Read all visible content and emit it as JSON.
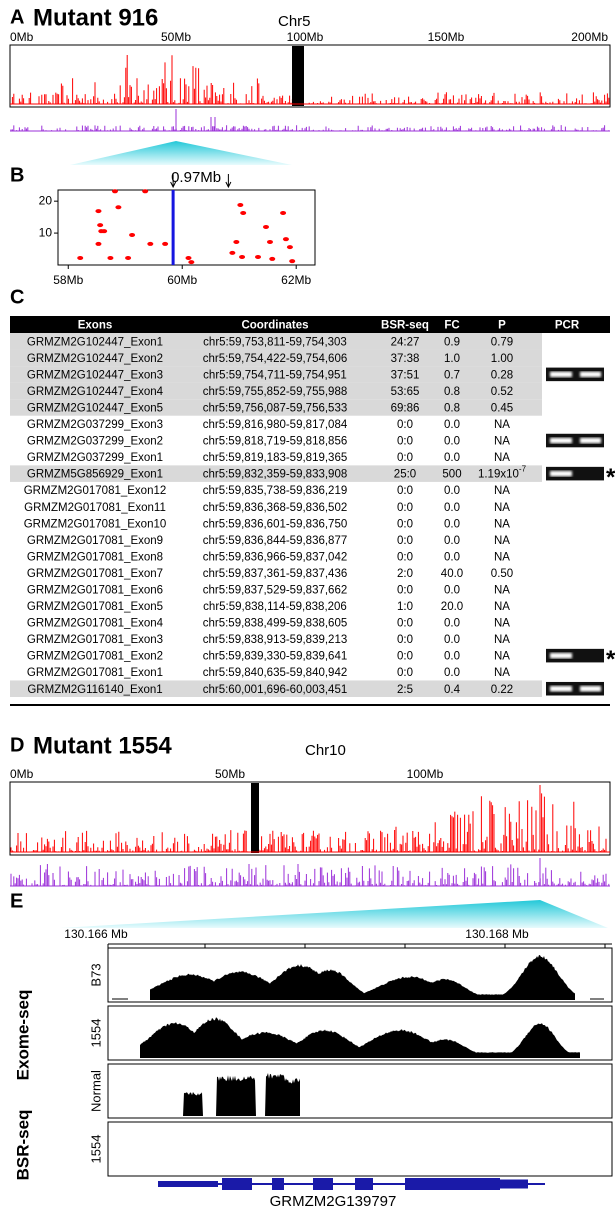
{
  "panel_a": {
    "letter": "A",
    "title": "Mutant 916",
    "chromosome": "Chr5",
    "axis_labels": [
      "0Mb",
      "50Mb",
      "100Mb",
      "150Mb",
      "200Mb"
    ]
  },
  "chart_data": {
    "type": "scatter",
    "letter": "B",
    "annotation": "0.97Mb",
    "x": [
      58.21,
      58.53,
      58.56,
      58.58,
      58.53,
      58.63,
      58.74,
      58.82,
      58.88,
      59.05,
      59.12,
      59.35,
      59.44,
      59.7,
      60.11,
      60.16,
      60.88,
      60.95,
      61.02,
      61.07,
      61.05,
      61.33,
      61.47,
      61.54,
      61.58,
      61.77,
      61.82,
      61.89,
      61.93
    ],
    "values": [
      2.2,
      16.9,
      12.5,
      10.6,
      6.6,
      10.6,
      2.2,
      23.1,
      18.1,
      2.2,
      9.4,
      23.1,
      6.6,
      6.6,
      2.2,
      0.9,
      3.8,
      7.2,
      18.8,
      16.3,
      2.5,
      2.5,
      11.9,
      7.2,
      1.9,
      16.3,
      8.1,
      5.6,
      1.2
    ],
    "color": "#ff0000",
    "highlight_x": 59.84,
    "highlight_color": "#1515e0",
    "interval": [
      59.84,
      60.81
    ],
    "xlim": [
      57.82,
      62.33
    ],
    "ylim": [
      0,
      23.5
    ],
    "xticks": [
      {
        "value": 58,
        "label": "58Mb"
      },
      {
        "value": 60,
        "label": "60Mb"
      },
      {
        "value": 62,
        "label": "62Mb"
      }
    ],
    "yticks": [
      10,
      20
    ]
  },
  "panel_c": {
    "letter": "C",
    "header": [
      "Exons",
      "Coordinates",
      "BSR-seq",
      "FC",
      "P",
      "PCR"
    ],
    "rows": [
      [
        "GRMZM2G102447_Exon1",
        "chr5:59,753,811-59,754,303",
        "24:27",
        "0.9",
        "0.79"
      ],
      [
        "GRMZM2G102447_Exon2",
        "chr5:59,754,422-59,754,606",
        "37:38",
        "1.0",
        "1.00"
      ],
      [
        "GRMZM2G102447_Exon3",
        "chr5:59,754,711-59,754,951",
        "37:51",
        "0.7",
        "0.28"
      ],
      [
        "GRMZM2G102447_Exon4",
        "chr5:59,755,852-59,755,988",
        "53:65",
        "0.8",
        "0.52"
      ],
      [
        "GRMZM2G102447_Exon5",
        "chr5:59,756,087-59,756,533",
        "69:86",
        "0.8",
        "0.45"
      ],
      [
        "GRMZM2G037299_Exon3",
        "chr5:59,816,980-59,817,084",
        "0:0",
        "0.0",
        "NA"
      ],
      [
        "GRMZM2G037299_Exon2",
        "chr5:59,818,719-59,818,856",
        "0:0",
        "0.0",
        "NA"
      ],
      [
        "GRMZM2G037299_Exon1",
        "chr5:59,819,183-59,819,365",
        "0:0",
        "0.0",
        "NA"
      ],
      [
        "GRMZM5G856929_Exon1",
        "chr5:59,832,359-59,833,908",
        "25:0",
        "500",
        {
          "base": "1.19x10",
          "exponent": "-7"
        }
      ],
      [
        "GRMZM2G017081_Exon12",
        "chr5:59,835,738-59,836,219",
        "0:0",
        "0.0",
        "NA"
      ],
      [
        "GRMZM2G017081_Exon11",
        "chr5:59,836,368-59,836,502",
        "0:0",
        "0.0",
        "NA"
      ],
      [
        "GRMZM2G017081_Exon10",
        "chr5:59,836,601-59,836,750",
        "0:0",
        "0.0",
        "NA"
      ],
      [
        "GRMZM2G017081_Exon9",
        "chr5:59,836,844-59,836,877",
        "0:0",
        "0.0",
        "NA"
      ],
      [
        "GRMZM2G017081_Exon8",
        "chr5:59,836,966-59,837,042",
        "0:0",
        "0.0",
        "NA"
      ],
      [
        "GRMZM2G017081_Exon7",
        "chr5:59,837,361-59,837,436",
        "2:0",
        "40.0",
        "0.50"
      ],
      [
        "GRMZM2G017081_Exon6",
        "chr5:59,837,529-59,837,662",
        "0:0",
        "0.0",
        "NA"
      ],
      [
        "GRMZM2G017081_Exon5",
        "chr5:59,838,114-59,838,206",
        "1:0",
        "20.0",
        "NA"
      ],
      [
        "GRMZM2G017081_Exon4",
        "chr5:59,838,499-59,838,605",
        "0:0",
        "0.0",
        "NA"
      ],
      [
        "GRMZM2G017081_Exon3",
        "chr5:59,838,913-59,839,213",
        "0:0",
        "0.0",
        "NA"
      ],
      [
        "GRMZM2G017081_Exon2",
        "chr5:59,839,330-59,839,641",
        "0:0",
        "0.0",
        "NA"
      ],
      [
        "GRMZM2G017081_Exon1",
        "chr5:59,840,635-59,840,942",
        "0:0",
        "0.0",
        "NA"
      ],
      [
        "GRMZM2G116140_Exon1",
        "chr5:60,001,696-60,003,451",
        "2:5",
        "0.4",
        "0.22"
      ]
    ],
    "shaded_rows": [
      0,
      1,
      2,
      3,
      4,
      8,
      21
    ],
    "pcr_rows": [
      2,
      6,
      8,
      19,
      21
    ],
    "marked_rows": [
      8,
      19
    ],
    "marker": "*"
  },
  "panel_d": {
    "letter": "D",
    "title": "Mutant 1554",
    "chromosome": "Chr10",
    "axis_labels": [
      "0Mb",
      "50Mb",
      "100Mb"
    ]
  },
  "panel_e": {
    "letter": "E",
    "axis_labels": [
      "130.166 Mb",
      "130.168 Mb"
    ],
    "groups": [
      "Exome-seq",
      "BSR-seq"
    ],
    "tracks": [
      "B73",
      "1554",
      "Normal",
      "1554"
    ],
    "gene": "GRMZM2G139797"
  }
}
